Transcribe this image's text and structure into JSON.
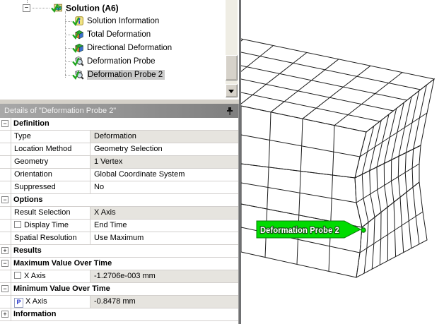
{
  "tree": {
    "root": {
      "label": "Solution (A6)",
      "icon": "solution-icon",
      "expanded": true
    },
    "children": [
      {
        "label": "Solution Information",
        "icon": "info-icon",
        "selected": false
      },
      {
        "label": "Total Deformation",
        "icon": "result-icon",
        "selected": false
      },
      {
        "label": "Directional Deformation",
        "icon": "result-icon",
        "selected": false
      },
      {
        "label": "Deformation Probe",
        "icon": "probe-icon",
        "selected": false
      },
      {
        "label": "Deformation Probe 2",
        "icon": "probe-icon",
        "selected": true
      }
    ],
    "scrollbar": {
      "down_arrow_icon": "down-arrow-icon"
    }
  },
  "details": {
    "title": "Details of \"Deformation Probe 2\"",
    "pin_icon": "pin-icon",
    "sections": [
      {
        "title": "Definition",
        "state": "expanded",
        "rows": [
          {
            "label": "Type",
            "value": "Deformation",
            "value_bg": "gray",
            "control": "none"
          },
          {
            "label": "Location Method",
            "value": "Geometry Selection",
            "value_bg": "white",
            "control": "none"
          },
          {
            "label": "Geometry",
            "value": "1 Vertex",
            "value_bg": "gray",
            "control": "none"
          },
          {
            "label": "Orientation",
            "value": "Global Coordinate System",
            "value_bg": "white",
            "control": "none"
          },
          {
            "label": "Suppressed",
            "value": "No",
            "value_bg": "white",
            "control": "none"
          }
        ]
      },
      {
        "title": "Options",
        "state": "expanded",
        "rows": [
          {
            "label": "Result Selection",
            "value": "X Axis",
            "value_bg": "gray",
            "control": "none"
          },
          {
            "label": "Display Time",
            "value": "End Time",
            "value_bg": "white",
            "control": "checkbox"
          },
          {
            "label": "Spatial Resolution",
            "value": "Use Maximum",
            "value_bg": "white",
            "control": "none"
          }
        ]
      },
      {
        "title": "Results",
        "state": "collapsed",
        "rows": []
      },
      {
        "title": "Maximum Value Over Time",
        "state": "expanded",
        "rows": [
          {
            "label": "X Axis",
            "value": "-1.2706e-003 mm",
            "value_bg": "gray",
            "control": "checkbox"
          }
        ]
      },
      {
        "title": "Minimum Value Over Time",
        "state": "expanded",
        "rows": [
          {
            "label": "X Axis",
            "value": "-0.8478 mm",
            "value_bg": "gray",
            "control": "param",
            "param_letter": "P"
          }
        ]
      },
      {
        "title": "Information",
        "state": "collapsed",
        "rows": []
      }
    ]
  },
  "viewport": {
    "annotation": {
      "label": "Deformation Probe 2",
      "color": "#00DC00"
    },
    "mesh_colors": {
      "top": "#b3b4b5",
      "front_top_layer": "#75787b",
      "front_middle_layer": "#7d8ca6",
      "front_bottom_layer": "#6d7c60",
      "side_top_layer": "#9b9da0",
      "side_middle_layer": "#9eb2ce",
      "side_bottom_layer": "#93a27f"
    }
  }
}
